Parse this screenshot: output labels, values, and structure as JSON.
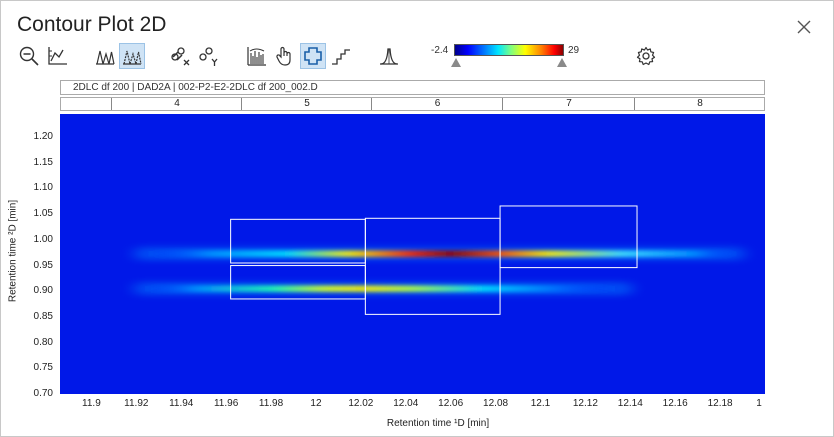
{
  "window": {
    "title": "Contour Plot 2D"
  },
  "toolbar": {
    "buttons": [
      {
        "icon": "zoom-out-icon"
      },
      {
        "icon": "axis-chart-icon"
      },
      {
        "icon": "peaks-icon"
      },
      {
        "icon": "peaks-overlay-icon",
        "active": true
      },
      {
        "icon": "link-x-icon"
      },
      {
        "icon": "link-y-icon"
      },
      {
        "icon": "spectrum-icon"
      },
      {
        "icon": "pan-hand-icon"
      },
      {
        "icon": "region-select-icon",
        "active": true
      },
      {
        "icon": "step-icon"
      },
      {
        "icon": "peak-shape-icon"
      },
      {
        "icon": "settings-gear-icon"
      }
    ]
  },
  "colorbar": {
    "min_label": "-2.4",
    "max_label": "29"
  },
  "info_bar": {
    "text": "2DLC df 200 | DAD2A | 002-P2-E2-2DLC df 200_002.D"
  },
  "first_dim": {
    "labels": [
      "4",
      "5",
      "6",
      "7",
      "8"
    ]
  },
  "chart_data": {
    "type": "heatmap",
    "xlabel": "Retention time ¹D [min]",
    "ylabel": "Retention time ²D [min]",
    "x_ticks": [
      "11.9",
      "11.92",
      "11.94",
      "11.96",
      "11.98",
      "12",
      "12.02",
      "12.04",
      "12.06",
      "12.08",
      "12.1",
      "12.12",
      "12.14",
      "12.16",
      "12.18",
      "1"
    ],
    "y_ticks": [
      "1.20",
      "1.15",
      "1.10",
      "1.05",
      "1.00",
      "0.95",
      "0.90",
      "0.85",
      "0.80",
      "0.75",
      "0.70"
    ],
    "xlim": [
      11.886,
      12.2
    ],
    "ylim": [
      0.7,
      1.245
    ],
    "color_range": [
      -2.4,
      29
    ],
    "bands": [
      {
        "y": 0.973,
        "x_start": 11.92,
        "x_end": 12.19,
        "peak_x": 12.04,
        "peak": 29
      },
      {
        "y": 0.905,
        "x_start": 11.92,
        "x_end": 12.14,
        "peak_x": 11.99,
        "peak": 16
      }
    ],
    "regions": [
      {
        "x": [
          11.962,
          12.022
        ],
        "y": [
          0.955,
          1.04
        ]
      },
      {
        "x": [
          11.962,
          12.022
        ],
        "y": [
          0.885,
          0.95
        ]
      },
      {
        "x": [
          12.022,
          12.082
        ],
        "y": [
          0.855,
          1.042
        ]
      },
      {
        "x": [
          12.082,
          12.143
        ],
        "y": [
          0.946,
          1.066
        ]
      }
    ]
  }
}
